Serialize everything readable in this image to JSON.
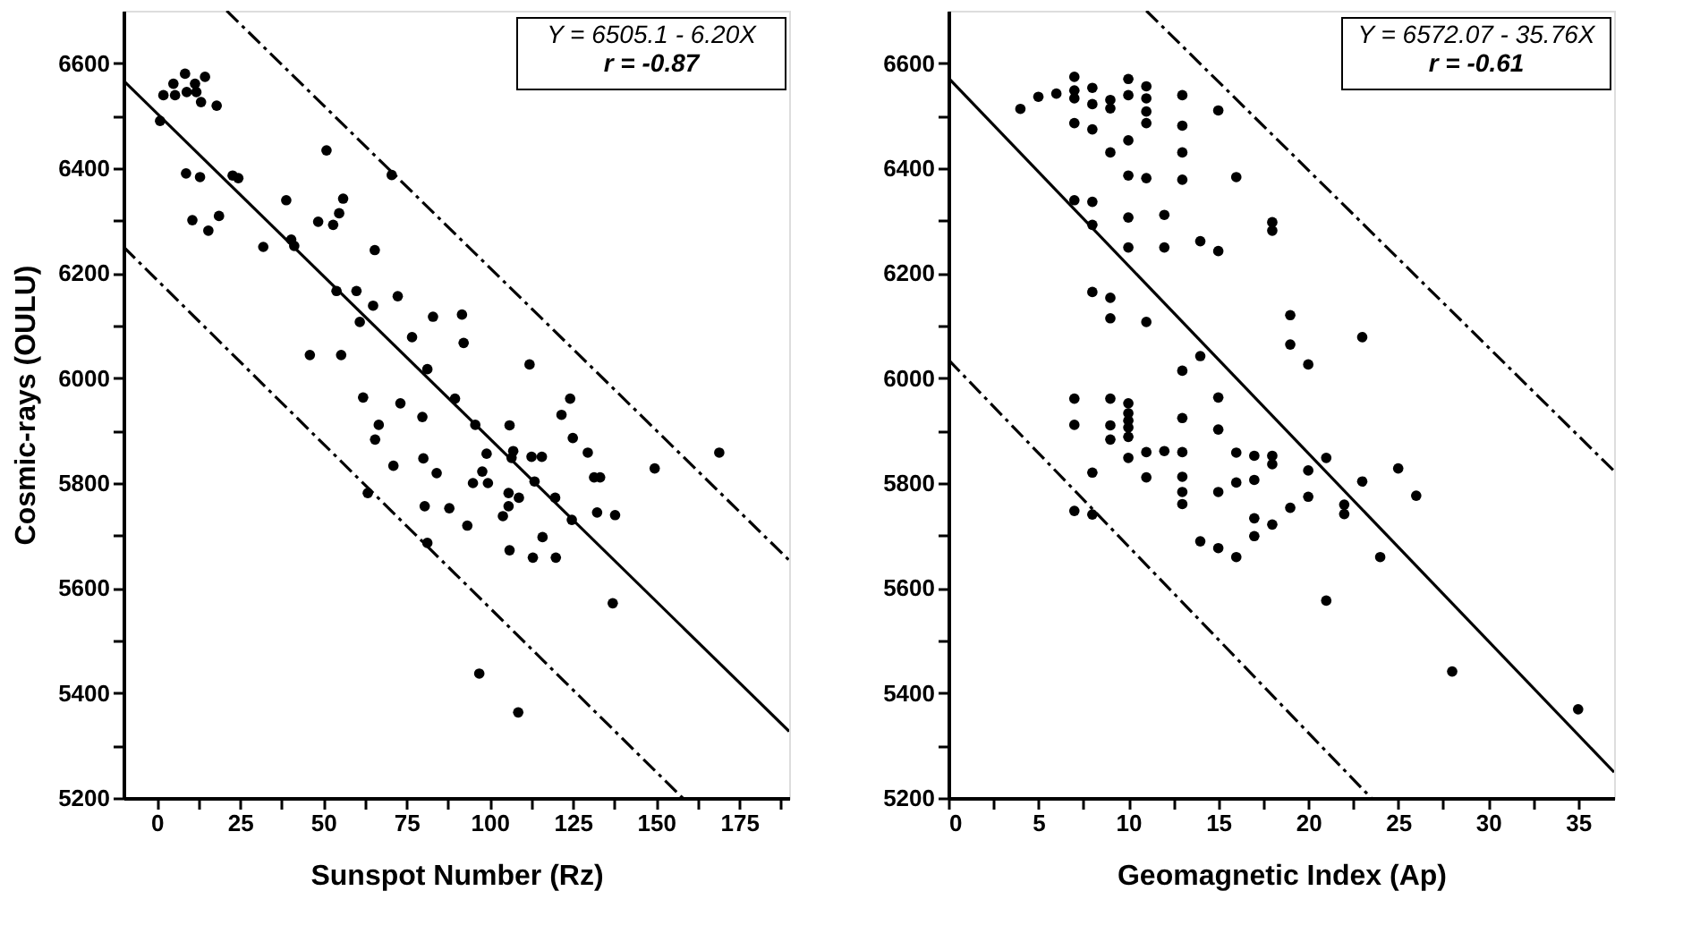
{
  "chart_data": [
    {
      "type": "scatter",
      "xlabel": "Sunspot Number (Rz)",
      "ylabel": "Cosmic-rays (OULU)",
      "annotations": [
        "Y = 6505.1 - 6.20X",
        "r = -0.87"
      ],
      "xlim": [
        -10,
        190
      ],
      "ylim": [
        5200,
        6700
      ],
      "xticks": [
        0,
        {
          "value": 12.5,
          "label": null
        },
        25,
        {
          "value": 37.5,
          "label": null
        },
        50,
        {
          "value": 62.5,
          "label": null
        },
        75,
        {
          "value": 87.5,
          "label": null
        },
        100,
        {
          "value": 112.5,
          "label": null
        },
        125,
        {
          "value": 137.5,
          "label": null
        },
        150,
        {
          "value": 162.5,
          "label": null
        },
        175,
        {
          "value": 187.5,
          "label": null
        }
      ],
      "yticks": [
        5200,
        {
          "value": 5300,
          "label": null
        },
        5400,
        {
          "value": 5500,
          "label": null
        },
        5600,
        {
          "value": 5700,
          "label": null
        },
        5800,
        {
          "value": 5900,
          "label": null
        },
        6000,
        {
          "value": 6100,
          "label": null
        },
        6200,
        {
          "value": 6300,
          "label": null
        },
        6400,
        {
          "value": 6500,
          "label": null
        },
        6600
      ],
      "grid": false,
      "series": [
        {
          "type": "scatter",
          "color": "#000000",
          "marker": "circle",
          "x": [
            1,
            2,
            5,
            5.5,
            8.5,
            9,
            11.5,
            11.9,
            14.5,
            13.3,
            18,
            8.8,
            13,
            10.7,
            15.5,
            18.7,
            22.8,
            24.5,
            32,
            38.9,
            40.4,
            41.3,
            46,
            48.5,
            51,
            53,
            54.8,
            56,
            54,
            55.4,
            60,
            61,
            65,
            62,
            65.5,
            65.6,
            70.6,
            72.4,
            76.7,
            83,
            91.7,
            92.2,
            81.3,
            112,
            73.2,
            79.8,
            89.6,
            66.7,
            95.7,
            106,
            121.6,
            124.2,
            125,
            169,
            63.4,
            71.1,
            80.1,
            80.5,
            84.1,
            81.3,
            87.9,
            93.3,
            95,
            97.8,
            99.1,
            99.5,
            96.9,
            104,
            105.7,
            105.7,
            106,
            107.1,
            106.6,
            108.8,
            108.6,
            112.6,
            113,
            113.5,
            115.7,
            115.9,
            119.7,
            119.9,
            124.7,
            129.5,
            131.4,
            133.2,
            132.3,
            137,
            137.7,
            149.6
          ],
          "values": [
            6490,
            6539,
            6561,
            6539,
            6580,
            6545,
            6561,
            6545,
            6574,
            6526,
            6519,
            6390,
            6383,
            6301,
            6281,
            6309,
            6386,
            6381,
            6250,
            6339,
            6264,
            6252,
            6044,
            6298,
            6434,
            6292,
            6314,
            6342,
            6166,
            6044,
            6166,
            6107,
            6138,
            5963,
            6244,
            5883,
            6387,
            6156,
            6078,
            6117,
            6121,
            6067,
            6017,
            6026,
            5952,
            5926,
            5961,
            5911,
            5911,
            5910,
            5930,
            5961,
            5886,
            5858,
            5781,
            5833,
            5847,
            5756,
            5819,
            5686,
            5752,
            5719,
            5800,
            5822,
            5856,
            5800,
            5437,
            5737,
            5756,
            5781,
            5672,
            5861,
            5848,
            5772,
            5363,
            5850,
            5658,
            5803,
            5850,
            5697,
            5772,
            5658,
            5730,
            5858,
            5811,
            5811,
            5744,
            5571,
            5739,
            5828
          ]
        },
        {
          "type": "line",
          "color": "#000000",
          "line_style": "solid",
          "x": [
            -10,
            190
          ],
          "values": [
            6567,
            5327
          ]
        },
        {
          "type": "line",
          "color": "#000000",
          "line_style": "dashed",
          "x": [
            21,
            190
          ],
          "values": [
            6700,
            5653
          ]
        },
        {
          "type": "line",
          "color": "#000000",
          "line_style": "dashed",
          "x": [
            -10,
            158
          ],
          "values": [
            6250,
            5200
          ]
        }
      ]
    },
    {
      "type": "scatter",
      "xlabel": "Geomagnetic Index (Ap)",
      "annotations": [
        "Y = 6572.07 - 35.76X",
        "r = -0.61"
      ],
      "xlim": [
        0,
        37
      ],
      "ylim": [
        5200,
        6700
      ],
      "xticks": [
        0,
        {
          "value": 2.5,
          "label": null
        },
        5,
        {
          "value": 7.5,
          "label": null
        },
        10,
        {
          "value": 12.5,
          "label": null
        },
        15,
        {
          "value": 17.5,
          "label": null
        },
        20,
        {
          "value": 22.5,
          "label": null
        },
        25,
        {
          "value": 27.5,
          "label": null
        },
        30,
        {
          "value": 32.5,
          "label": null
        },
        35
      ],
      "yticks": [
        5200,
        {
          "value": 5300,
          "label": null
        },
        5400,
        {
          "value": 5500,
          "label": null
        },
        5600,
        {
          "value": 5700,
          "label": null
        },
        5800,
        {
          "value": 5900,
          "label": null
        },
        6000,
        {
          "value": 6100,
          "label": null
        },
        6200,
        {
          "value": 6300,
          "label": null
        },
        6400,
        {
          "value": 6500,
          "label": null
        },
        6600
      ],
      "grid": false,
      "series": [
        {
          "type": "scatter",
          "color": "#000000",
          "marker": "circle",
          "x": [
            4,
            5,
            6,
            7,
            7,
            7,
            7,
            7,
            7,
            7,
            8,
            8,
            8,
            8,
            8,
            8,
            9,
            9,
            9,
            9,
            9,
            9,
            9,
            9,
            10,
            10,
            10,
            10,
            10,
            10,
            10,
            10,
            10,
            10,
            10,
            11,
            11,
            11,
            11,
            11,
            11,
            12,
            12,
            13,
            13,
            13,
            13,
            13,
            13,
            14,
            14,
            15,
            15,
            15,
            15,
            16,
            18,
            18,
            19,
            19,
            20,
            23,
            7,
            8,
            8,
            10,
            11,
            11,
            12,
            13,
            13,
            13,
            13,
            14,
            15,
            15,
            16,
            16,
            16,
            17,
            17,
            17,
            17,
            18,
            18,
            18,
            19,
            20,
            20,
            21,
            21,
            22,
            22,
            23,
            24,
            25,
            26,
            28,
            35
          ],
          "values": [
            6513,
            6536,
            6542,
            6574,
            6548,
            6533,
            6486,
            6339,
            5961,
            5911,
            6553,
            6522,
            6474,
            6336,
            6292,
            6164,
            6530,
            6514,
            6430,
            6153,
            6114,
            5961,
            5910,
            5883,
            6570,
            6539,
            6453,
            6386,
            6306,
            6249,
            5952,
            5933,
            5919,
            5906,
            5848,
            6556,
            6533,
            6508,
            6486,
            6381,
            6107,
            6311,
            6249,
            6539,
            6481,
            6430,
            6378,
            6014,
            5924,
            6261,
            6042,
            6510,
            6242,
            5963,
            5902,
            6383,
            6297,
            6281,
            6120,
            6064,
            6026,
            6078,
            5747,
            5820,
            5740,
            5888,
            5859,
            5811,
            5861,
            5859,
            5812,
            5783,
            5760,
            5689,
            5783,
            5676,
            5858,
            5801,
            5659,
            5852,
            5806,
            5733,
            5699,
            5852,
            5836,
            5721,
            5753,
            5824,
            5774,
            5848,
            5576,
            5759,
            5741,
            5803,
            5659,
            5828,
            5776,
            5441,
            5369
          ]
        },
        {
          "type": "line",
          "color": "#000000",
          "line_style": "solid",
          "x": [
            0,
            37
          ],
          "values": [
            6572,
            5249
          ]
        },
        {
          "type": "line",
          "color": "#000000",
          "line_style": "dashed",
          "x": [
            11,
            37
          ],
          "values": [
            6700,
            5823
          ]
        },
        {
          "type": "line",
          "color": "#000000",
          "line_style": "dashed",
          "x": [
            0,
            23.5
          ],
          "values": [
            6035,
            5200
          ]
        }
      ]
    }
  ]
}
